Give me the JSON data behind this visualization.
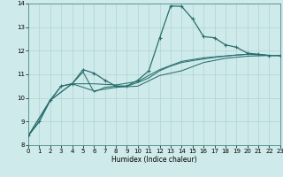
{
  "xlabel": "Humidex (Indice chaleur)",
  "xlim": [
    0,
    23
  ],
  "ylim": [
    8,
    14
  ],
  "yticks": [
    8,
    9,
    10,
    11,
    12,
    13,
    14
  ],
  "xticks": [
    0,
    1,
    2,
    3,
    4,
    5,
    6,
    7,
    8,
    9,
    10,
    11,
    12,
    13,
    14,
    15,
    16,
    17,
    18,
    19,
    20,
    21,
    22,
    23
  ],
  "bg_color": "#ceeaea",
  "grid_color": "#b0d4d4",
  "line_color": "#2a6e6e",
  "line1_x": [
    0,
    1,
    2,
    3,
    4,
    5,
    6,
    7,
    8,
    9,
    10,
    11,
    12,
    13,
    14,
    15,
    16,
    17,
    18,
    19,
    20,
    21,
    22,
    23
  ],
  "line1_y": [
    8.4,
    9.0,
    9.9,
    10.5,
    10.6,
    11.2,
    11.05,
    10.75,
    10.5,
    10.5,
    10.75,
    11.15,
    12.55,
    13.9,
    13.88,
    13.35,
    12.6,
    12.55,
    12.25,
    12.15,
    11.9,
    11.85,
    11.8,
    11.8
  ],
  "line2_x": [
    0,
    1,
    2,
    3,
    4,
    5,
    6,
    7,
    8,
    9,
    10,
    11,
    12,
    13,
    14,
    15,
    16,
    17,
    18,
    19,
    20,
    21,
    22,
    23
  ],
  "line2_y": [
    8.4,
    9.0,
    9.9,
    10.5,
    10.6,
    11.1,
    10.25,
    10.45,
    10.5,
    10.5,
    10.65,
    10.85,
    11.15,
    11.35,
    11.5,
    11.58,
    11.65,
    11.72,
    11.77,
    11.82,
    11.85,
    11.85,
    11.8,
    11.8
  ],
  "line3_x": [
    0,
    2,
    4,
    6,
    8,
    10,
    12,
    14,
    16,
    18,
    20,
    22,
    23
  ],
  "line3_y": [
    8.4,
    9.9,
    10.6,
    10.6,
    10.55,
    10.7,
    11.2,
    11.55,
    11.7,
    11.78,
    11.85,
    11.8,
    11.8
  ],
  "line4_x": [
    0,
    2,
    4,
    6,
    8,
    10,
    12,
    14,
    16,
    18,
    20,
    22,
    23
  ],
  "line4_y": [
    8.4,
    9.9,
    10.6,
    10.3,
    10.45,
    10.5,
    10.95,
    11.15,
    11.5,
    11.68,
    11.77,
    11.8,
    11.8
  ]
}
